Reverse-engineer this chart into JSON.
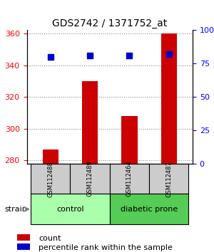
{
  "title": "GDS2742 / 1371752_at",
  "samples": [
    "GSM112488",
    "GSM112489",
    "GSM112464",
    "GSM112487"
  ],
  "bar_values": [
    287,
    330,
    308,
    360
  ],
  "percentile_values": [
    80,
    81,
    81,
    82
  ],
  "bar_color": "#cc0000",
  "percentile_color": "#0000cc",
  "ylim_left": [
    278,
    362
  ],
  "ylim_right": [
    0,
    100
  ],
  "yticks_left": [
    280,
    300,
    320,
    340,
    360
  ],
  "yticks_right": [
    0,
    25,
    50,
    75,
    100
  ],
  "ytick_labels_right": [
    "0",
    "25",
    "50",
    "75",
    "100%"
  ],
  "groups": [
    {
      "label": "control",
      "indices": [
        0,
        1
      ],
      "color": "#aaffaa"
    },
    {
      "label": "diabetic prone",
      "indices": [
        2,
        3
      ],
      "color": "#55cc55"
    }
  ],
  "strain_label": "strain",
  "legend_count": "count",
  "legend_percentile": "percentile rank within the sample",
  "grid_color": "#888888",
  "bar_bottom": 278,
  "sample_box_color": "#cccccc",
  "x_positions": [
    0,
    1,
    2,
    3
  ]
}
